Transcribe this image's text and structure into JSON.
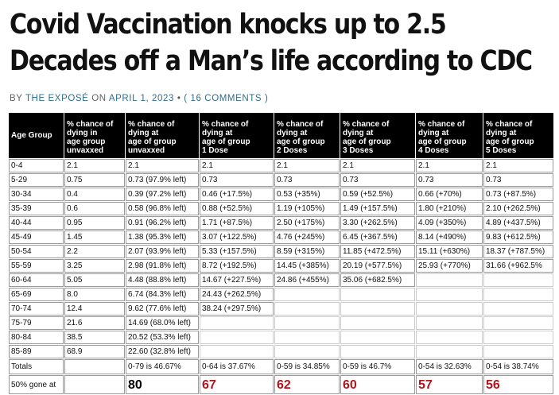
{
  "article": {
    "title_line1": "Covid Vaccination knocks up to 2.5",
    "title_line2": "Decades off a Man’s life according to CDC",
    "meta_by": "BY",
    "author": "THE EXPOSÉ",
    "meta_on": "ON",
    "date": "APRIL 1, 2023",
    "bullet": "•",
    "comments": "( 16 COMMENTS )"
  },
  "table": {
    "headers": [
      [
        "Age Group"
      ],
      [
        "% chance of",
        "dying in",
        "age group",
        "unvaxxed"
      ],
      [
        "% chance of",
        "dying at",
        "age of group",
        "unvaxxed"
      ],
      [
        "% chance of",
        "dying at",
        "age of group",
        "1 Dose"
      ],
      [
        "% chance of",
        "dying at",
        "age of group",
        "2 Doses"
      ],
      [
        "% chance of",
        "dying at",
        "age of group",
        "3 Doses"
      ],
      [
        "% chance of",
        "dying at",
        "age of group",
        "4 Doses"
      ],
      [
        "% chance of",
        "dying at",
        "age of group",
        "5 Doses"
      ]
    ],
    "rows": [
      [
        "0-4",
        "2.1",
        "2.1",
        "2.1",
        "2.1",
        "2.1",
        "2.1",
        "2.1"
      ],
      [
        "5-29",
        "0.75",
        "0.73 (97.9% left)",
        "0.73",
        "0.73",
        "0.73",
        "0.73",
        "0.73"
      ],
      [
        "30-34",
        "0.4",
        "0.39 (97.2% left)",
        "0.46 (+17.5%)",
        "0.53 (+35%)",
        "0.59 (+52.5%)",
        "0.66 (+70%)",
        "0.73 (+87.5%)"
      ],
      [
        "35-39",
        "0.6",
        "0.58 (96.8% left)",
        "0.88 (+52.5%)",
        "1.19 (+105%)",
        "1.49 (+157.5%)",
        "1.80 (+210%)",
        "2.10 (+262.5%)"
      ],
      [
        "40-44",
        "0.95",
        "0.91 (96.2% left)",
        "1.71 (+87.5%)",
        "2.50 (+175%)",
        "3.30 (+262.5%)",
        "4.09 (+350%)",
        "4.89 (+437.5%)"
      ],
      [
        "45-49",
        "1.45",
        "1.38 (95.3% left)",
        "3.07 (+122.5%)",
        "4.76 (+245%)",
        "6.45 (+367.5%)",
        "8.14 (+490%)",
        "9.83 (+612.5%)"
      ],
      [
        "50-54",
        "2.2",
        "2.07 (93.9% left)",
        "5.33 (+157.5%)",
        "8.59 (+315%)",
        "11.85 (+472.5%)",
        "15.11 (+630%)",
        "18.37 (+787.5%)"
      ],
      [
        "55-59",
        "3.25",
        "2.98 (91.8% left)",
        "8.72 (+192.5%)",
        "14.45 (+385%)",
        "20.19 (+577.5%)",
        "25.93 (+770%)",
        "31.66 (+962.5%"
      ],
      [
        "60-64",
        "5.05",
        "4.48 (88.8% left)",
        "14.67 (+227.5%)",
        "24.86 (+455%)",
        "35.06 (+682.5%)",
        "",
        ""
      ],
      [
        "65-69",
        "8.0",
        "6.74 (84.3% left)",
        "24.43 (+262.5%)",
        "",
        "",
        "",
        ""
      ],
      [
        "70-74",
        "12.4",
        "9.62 (77.6% left)",
        "38.24 (+297.5%)",
        "",
        "",
        "",
        ""
      ],
      [
        "75-79",
        "21.6",
        "14.69 (68.0% left)",
        "",
        "",
        "",
        "",
        ""
      ],
      [
        "80-84",
        "38.5",
        "20.52 (53.3% left)",
        "",
        "",
        "",
        "",
        ""
      ],
      [
        "85-89",
        "68.9",
        "22.60 (32.8% left)",
        "",
        "",
        "",
        "",
        ""
      ]
    ],
    "totals": [
      "Totals",
      "",
      "0-79 is 46.67%",
      "0-64 is 37.67%",
      "0-59 is 34.85%",
      "0-59 is 46.7%",
      "0-54 is 32.63%",
      "0-54 is 38.74%"
    ],
    "gone": [
      "50% gone at",
      "",
      "80",
      "67",
      "62",
      "60",
      "57",
      "56"
    ],
    "colors": {
      "header_bg": "#000000",
      "header_text": "#ffffff",
      "gone_red": "#b3141b",
      "gone_dark": "#000000"
    }
  }
}
